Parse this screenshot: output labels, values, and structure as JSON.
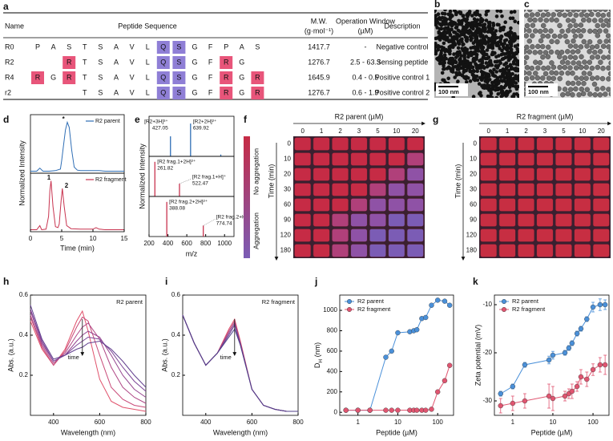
{
  "panel_labels": [
    "a",
    "b",
    "c",
    "d",
    "e",
    "f",
    "g",
    "h",
    "i",
    "j",
    "k"
  ],
  "table": {
    "header": [
      "Name",
      "Peptide Sequence",
      [
        "M.W.",
        "(g·mol⁻¹)"
      ],
      [
        "Operation Window",
        "(µM)"
      ],
      "Description"
    ],
    "rows": [
      {
        "name": "R0",
        "sequence": [
          "P",
          "A",
          "S",
          "T",
          "S",
          "A",
          "V",
          "L",
          "Q",
          "S",
          "G",
          "F",
          "P",
          "A",
          "S"
        ],
        "mw": 1417.7,
        "window": "-",
        "description": "Negative control"
      },
      {
        "name": "R2",
        "sequence": [
          null,
          null,
          "R",
          "T",
          "S",
          "A",
          "V",
          "L",
          "Q",
          "S",
          "G",
          "F",
          "R",
          "G",
          null
        ],
        "mw": 1276.7,
        "window": "2.5 - 63.3",
        "description": "Sensing peptide"
      },
      {
        "name": "R4",
        "sequence": [
          "R",
          "G",
          "R",
          "T",
          "S",
          "A",
          "V",
          "L",
          "Q",
          "S",
          "G",
          "F",
          "R",
          "G",
          "R"
        ],
        "mw": 1645.9,
        "window": "0.4 - 0.5",
        "description": "Positive control 1"
      },
      {
        "name": "r2",
        "sequence": [
          null,
          null,
          null,
          "T",
          "S",
          "A",
          "V",
          "L",
          "Q",
          "S",
          "G",
          "F",
          "R",
          "G",
          "R"
        ],
        "mw": 1276.7,
        "window": "0.6 - 1.9",
        "description": "Positive control 2"
      }
    ],
    "highlight": {
      "residue": "R",
      "residue_color": "#e8557a",
      "positions": [
        8,
        9
      ],
      "position_color": "#8f7fd6"
    }
  },
  "images": [
    {
      "scale_bar": "100 nm"
    },
    {
      "scale_bar": "100 nm"
    }
  ],
  "color_bar": {
    "labels": [
      "No aggregation",
      "Aggregation"
    ],
    "colors": [
      "#c62b45",
      "#7b5cb5"
    ]
  },
  "plates": [
    {
      "title": "R2 parent (µM)",
      "row_title": "Time (min)",
      "columns": [
        0,
        1,
        2,
        3,
        5,
        10,
        20
      ],
      "rows": [
        0,
        10,
        20,
        30,
        60,
        90,
        120,
        180
      ],
      "colors": [
        [
          "#c62b45",
          "#c62b45",
          "#c62b45",
          "#c62b45",
          "#c62b45",
          "#c62b45",
          "#c62b45"
        ],
        [
          "#c62b45",
          "#c62b45",
          "#c62b45",
          "#c62b45",
          "#c62b45",
          "#c62b45",
          "#b0407a"
        ],
        [
          "#c62b45",
          "#c62b45",
          "#c62b45",
          "#c62b45",
          "#c62b45",
          "#b0407a",
          "#8f52a6"
        ],
        [
          "#c62b45",
          "#c62b45",
          "#c62b45",
          "#c62b45",
          "#b0407a",
          "#8f52a6",
          "#8f52a6"
        ],
        [
          "#c62b45",
          "#c62b45",
          "#c62b45",
          "#b0407a",
          "#8f52a6",
          "#8f52a6",
          "#8f52a6"
        ],
        [
          "#c62b45",
          "#c62b45",
          "#b0407a",
          "#8f52a6",
          "#8f52a6",
          "#7b5cb5",
          "#7b5cb5"
        ],
        [
          "#c62b45",
          "#c62b45",
          "#b0407a",
          "#8f52a6",
          "#7b5cb5",
          "#7b5cb5",
          "#7b5cb5"
        ],
        [
          "#c62b45",
          "#c62b45",
          "#b0407a",
          "#8f52a6",
          "#7b5cb5",
          "#7b5cb5",
          "#7b5cb5"
        ]
      ]
    },
    {
      "title": "R2 fragment (µM)",
      "row_title": "Time (min)",
      "columns": [
        0,
        1,
        2,
        3,
        5,
        10,
        20
      ],
      "rows": [
        0,
        10,
        20,
        30,
        60,
        90,
        120,
        180
      ],
      "colors": [
        [
          "#c72e42",
          "#c72e42",
          "#c72e42",
          "#c72e42",
          "#c72e42",
          "#c72e42",
          "#c72e42"
        ],
        [
          "#c72e42",
          "#c72e42",
          "#c72e42",
          "#c72e42",
          "#c72e42",
          "#c72e42",
          "#c72e42"
        ],
        [
          "#c72e42",
          "#c72e42",
          "#c72e42",
          "#c72e42",
          "#c72e42",
          "#c72e42",
          "#c72e42"
        ],
        [
          "#c72e42",
          "#c72e42",
          "#c72e42",
          "#c72e42",
          "#c72e42",
          "#c72e42",
          "#c72e42"
        ],
        [
          "#c72e42",
          "#c72e42",
          "#c72e42",
          "#c72e42",
          "#c72e42",
          "#c72e42",
          "#c72e42"
        ],
        [
          "#c72e42",
          "#c72e42",
          "#c72e42",
          "#c72e42",
          "#c72e42",
          "#c72e42",
          "#c72e42"
        ],
        [
          "#c72e42",
          "#c72e42",
          "#c72e42",
          "#c72e42",
          "#c72e42",
          "#c72e42",
          "#c72e42"
        ],
        [
          "#c72e42",
          "#c72e42",
          "#c72e42",
          "#c72e42",
          "#c72e42",
          "#c72e42",
          "#c72e42"
        ]
      ]
    }
  ],
  "chart_data": [
    {
      "type": "chromatogram",
      "xlabel": "Time (min)",
      "ylabel": "Normalized Intensity",
      "xlim": [
        0,
        15
      ],
      "xticks": [
        0,
        5,
        10,
        15
      ],
      "ylim": [
        0,
        1.15
      ],
      "annotations": [
        "*",
        "1",
        "2"
      ],
      "series": [
        {
          "name": "R2 parent",
          "color": "#2f6eb5",
          "x": [
            0,
            1,
            1.5,
            2,
            3,
            4,
            4.8,
            5,
            5.3,
            5.6,
            5.9,
            6.2,
            6.6,
            7,
            7.5,
            8,
            10,
            11,
            12,
            15
          ],
          "values": [
            0.04,
            0.04,
            0.1,
            0.04,
            0.04,
            0.05,
            0.08,
            0.25,
            0.55,
            0.85,
            1.0,
            0.9,
            0.45,
            0.12,
            0.06,
            0.05,
            0.05,
            0.05,
            0.04,
            0.04
          ]
        },
        {
          "name": "R2 fragment",
          "color": "#c8334f",
          "x": [
            0,
            1,
            1.5,
            1.8,
            2.5,
            2.9,
            3.1,
            3.3,
            3.6,
            4,
            4.4,
            4.6,
            4.9,
            5.1,
            5.4,
            5.8,
            6.5,
            8,
            10,
            10.5,
            11,
            12,
            15
          ],
          "values": [
            0.04,
            0.04,
            0.12,
            0.04,
            0.05,
            0.3,
            0.8,
            1.0,
            0.5,
            0.1,
            0.08,
            0.15,
            0.6,
            0.85,
            0.5,
            0.12,
            0.06,
            0.05,
            0.05,
            0.08,
            0.05,
            0.04,
            0.04
          ]
        }
      ]
    },
    {
      "type": "stem",
      "xlabel": "m/z",
      "ylabel": "Normalized Intensity",
      "xlim": [
        200,
        1100
      ],
      "xticks": [
        200,
        400,
        600,
        800,
        1000
      ],
      "ylim": [
        0,
        1.1
      ],
      "panels": [
        {
          "color": "#2f6eb5",
          "peaks": [
            {
              "mz": 427.05,
              "intensity": 0.55,
              "label": "[R2+3H]³⁺"
            },
            {
              "mz": 639.92,
              "intensity": 0.9,
              "label": "[R2+2H]²⁺"
            },
            {
              "mz": 960,
              "intensity": 0.05
            }
          ]
        },
        {
          "color": "#c8334f",
          "peaks": [
            {
              "mz": 261.82,
              "intensity": 0.95,
              "label": "[R2 frag.1+2H]²⁺"
            },
            {
              "mz": 522.47,
              "intensity": 0.35,
              "label": "[R2 frag.1+H]⁺"
            }
          ]
        },
        {
          "color": "#c8334f",
          "peaks": [
            {
              "mz": 388.08,
              "intensity": 0.95,
              "label": "[R2 frag.2+2H]²⁺"
            },
            {
              "mz": 774.74,
              "intensity": 0.3,
              "label": "[R2 frag.2+H]⁺"
            }
          ]
        }
      ]
    },
    {
      "type": "spectra",
      "xlabel": "Wavelength (nm)",
      "ylabel": "Abs. (a.u.)",
      "xlim": [
        300,
        800
      ],
      "xticks": [
        400,
        600,
        800
      ],
      "ylim": [
        0,
        0.6
      ],
      "yticks": [
        0.2,
        0.4,
        0.6
      ],
      "annotations": [
        "R2 parent",
        "time"
      ],
      "x": [
        300,
        350,
        400,
        450,
        500,
        525,
        550,
        600,
        650,
        700,
        750,
        800
      ],
      "series": [
        {
          "color": "#e0506a",
          "values": [
            0.47,
            0.33,
            0.25,
            0.33,
            0.47,
            0.52,
            0.42,
            0.18,
            0.07,
            0.04,
            0.03,
            0.02
          ]
        },
        {
          "color": "#c84a78",
          "values": [
            0.49,
            0.34,
            0.25,
            0.32,
            0.44,
            0.49,
            0.47,
            0.3,
            0.14,
            0.08,
            0.05,
            0.04
          ]
        },
        {
          "color": "#b04886",
          "values": [
            0.5,
            0.35,
            0.26,
            0.31,
            0.4,
            0.44,
            0.46,
            0.38,
            0.24,
            0.14,
            0.09,
            0.06
          ]
        },
        {
          "color": "#964690",
          "values": [
            0.52,
            0.36,
            0.27,
            0.3,
            0.37,
            0.4,
            0.42,
            0.39,
            0.3,
            0.2,
            0.13,
            0.09
          ]
        },
        {
          "color": "#7c4496",
          "values": [
            0.53,
            0.37,
            0.27,
            0.3,
            0.35,
            0.37,
            0.39,
            0.38,
            0.32,
            0.24,
            0.17,
            0.12
          ]
        },
        {
          "color": "#63418f",
          "values": [
            0.55,
            0.38,
            0.28,
            0.3,
            0.33,
            0.34,
            0.36,
            0.37,
            0.33,
            0.27,
            0.2,
            0.14
          ]
        }
      ]
    },
    {
      "type": "spectra",
      "xlabel": "Wavelength (nm)",
      "ylabel": "Abs. (a.u.)",
      "xlim": [
        300,
        800
      ],
      "xticks": [
        400,
        600,
        800
      ],
      "ylim": [
        0,
        0.6
      ],
      "yticks": [
        0.2,
        0.4,
        0.6
      ],
      "annotations": [
        "R2 fragment",
        "time"
      ],
      "x": [
        300,
        350,
        400,
        450,
        500,
        525,
        550,
        600,
        650,
        700,
        750,
        800
      ],
      "series": [
        {
          "color": "#e0506a",
          "values": [
            0.5,
            0.36,
            0.25,
            0.31,
            0.43,
            0.48,
            0.37,
            0.13,
            0.05,
            0.03,
            0.02,
            0.02
          ]
        },
        {
          "color": "#b8467f",
          "values": [
            0.5,
            0.36,
            0.25,
            0.31,
            0.42,
            0.47,
            0.36,
            0.13,
            0.05,
            0.03,
            0.02,
            0.02
          ]
        },
        {
          "color": "#8f4590",
          "values": [
            0.5,
            0.36,
            0.25,
            0.31,
            0.41,
            0.46,
            0.36,
            0.13,
            0.05,
            0.03,
            0.02,
            0.02
          ]
        },
        {
          "color": "#6a4392",
          "values": [
            0.5,
            0.36,
            0.25,
            0.31,
            0.4,
            0.45,
            0.35,
            0.13,
            0.05,
            0.03,
            0.02,
            0.02
          ]
        },
        {
          "color": "#4f3f8a",
          "values": [
            0.5,
            0.36,
            0.25,
            0.31,
            0.39,
            0.43,
            0.35,
            0.13,
            0.05,
            0.03,
            0.02,
            0.02
          ]
        }
      ]
    },
    {
      "type": "scatter_line",
      "xlabel": "Peptide (µM)",
      "ylabel": {
        "main": "D",
        "sub": "H",
        "unit": " (nm)"
      },
      "log_x": true,
      "legend": "upper left",
      "xlim": [
        0.35,
        250
      ],
      "xticks": [
        1,
        10,
        100
      ],
      "ylim": [
        -30,
        1150
      ],
      "yticks": [
        0,
        200,
        400,
        600,
        800,
        1000
      ],
      "x": [
        0.5,
        1,
        2,
        5,
        7,
        10,
        20,
        25,
        30,
        40,
        50,
        70,
        100,
        150,
        200
      ],
      "series": [
        {
          "name": "R2 parent",
          "color": "#4a90d9",
          "values": [
            20,
            20,
            20,
            540,
            600,
            780,
            790,
            800,
            810,
            920,
            930,
            1050,
            1100,
            1090,
            1050
          ]
        },
        {
          "name": "R2 fragment",
          "color": "#e05570",
          "values": [
            20,
            20,
            20,
            20,
            20,
            20,
            20,
            20,
            20,
            20,
            20,
            30,
            200,
            310,
            460
          ]
        }
      ]
    },
    {
      "type": "scatter_line",
      "xlabel": "Peptide (µM)",
      "ylabel": "Zeta potential (mV)",
      "log_x": true,
      "legend": "upper left",
      "xlim": [
        0.35,
        250
      ],
      "xticks": [
        1,
        10,
        100
      ],
      "ylim": [
        -33,
        -8
      ],
      "yticks": [
        -30,
        -20,
        -10
      ],
      "x": [
        0.5,
        1,
        2,
        8,
        10,
        20,
        25,
        30,
        40,
        50,
        70,
        100,
        150,
        200
      ],
      "series": [
        {
          "name": "R2 parent",
          "color": "#4a90d9",
          "values": [
            -28.5,
            -27,
            -22.5,
            -21.5,
            -20.5,
            -20,
            -19,
            -18,
            -16,
            -15,
            -13,
            -10.5,
            -10,
            -10
          ],
          "errors": [
            0.5,
            0.5,
            0.5,
            0.8,
            0.8,
            0.5,
            0.5,
            0.5,
            0.5,
            0.5,
            0.5,
            1,
            1.2,
            1
          ]
        },
        {
          "name": "R2 fragment",
          "color": "#e05570",
          "values": [
            -31,
            -30.5,
            -30,
            -29,
            -29.5,
            -29,
            -28.5,
            -28,
            -27,
            -25,
            -25.5,
            -23.5,
            -22.5,
            -22.5
          ],
          "errors": [
            1.5,
            1.5,
            1.5,
            2.5,
            2.5,
            1,
            1,
            1.5,
            1,
            1.5,
            1.5,
            1.2,
            1.5,
            2
          ]
        }
      ]
    }
  ]
}
